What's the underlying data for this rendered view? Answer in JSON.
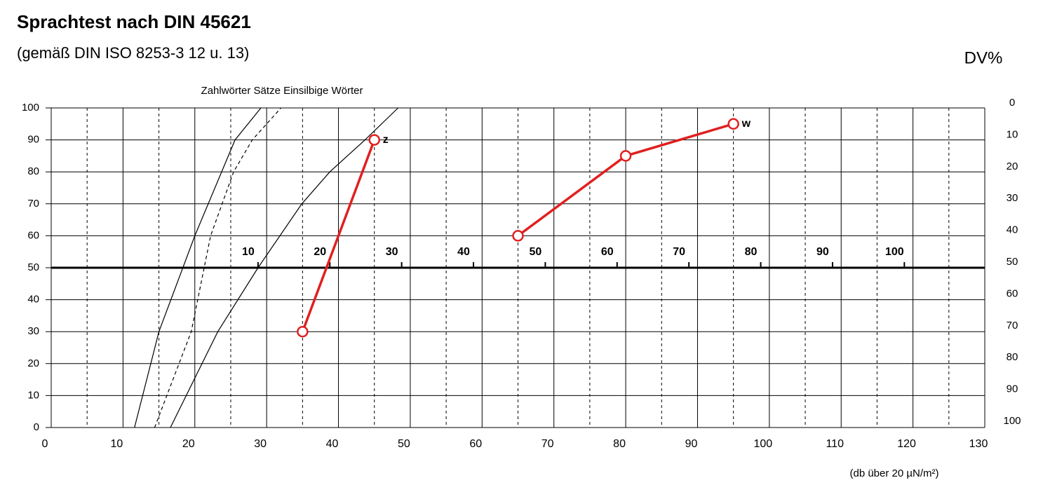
{
  "chart_data": {
    "type": "line",
    "title": "Sprachtest nach DIN 45621",
    "subtitle": "(gemäß DIN ISO 8253-3 12 u. 13)",
    "curves_label": "Zahlwörter Sätze Einsilbige Wörter",
    "xlabel": "(db über 20 µN/m²)",
    "y2label": "DV%",
    "xlim": [
      0,
      130
    ],
    "xticks": [
      0,
      10,
      20,
      30,
      40,
      50,
      60,
      70,
      80,
      90,
      100,
      110,
      120,
      130
    ],
    "xminor": [
      5,
      15,
      25,
      35,
      45,
      55,
      65,
      75,
      85,
      95,
      105,
      115,
      125
    ],
    "ylim": [
      0,
      100
    ],
    "yticks": [
      0,
      10,
      20,
      30,
      40,
      50,
      60,
      70,
      80,
      90,
      100
    ],
    "y2lim": [
      100,
      0
    ],
    "y2ticks": [
      0,
      10,
      20,
      30,
      40,
      50,
      60,
      70,
      80,
      90,
      100
    ],
    "x2lim": [
      -18.8,
      111.2
    ],
    "x2ticks": [
      10,
      20,
      30,
      40,
      50,
      60,
      70,
      80,
      90,
      100
    ],
    "x2_axis_at": 50,
    "grid": true,
    "reference_curves": [
      {
        "color": "#000000",
        "dashed": false,
        "x": [
          11.6,
          15,
          20,
          25.6,
          29.2
        ],
        "values": [
          0,
          30,
          60,
          90,
          100
        ]
      },
      {
        "color": "#000000",
        "dashed": true,
        "x": [
          14.4,
          19.5,
          22.2,
          25.4,
          28,
          32
        ],
        "values": [
          0,
          30,
          60,
          80,
          90,
          100
        ]
      },
      {
        "color": "#000000",
        "dashed": false,
        "x": [
          16.6,
          23.2,
          28.8,
          34.9,
          38.8,
          43.7,
          48.3
        ],
        "values": [
          0,
          30,
          50,
          70,
          80,
          90,
          100
        ]
      }
    ],
    "series": [
      {
        "name": "z",
        "color": "#e02020",
        "x": [
          35,
          45
        ],
        "values": [
          30,
          90
        ]
      },
      {
        "name": "w",
        "color": "#e02020",
        "x": [
          65,
          80,
          95
        ],
        "values": [
          60,
          85,
          95
        ]
      }
    ]
  }
}
